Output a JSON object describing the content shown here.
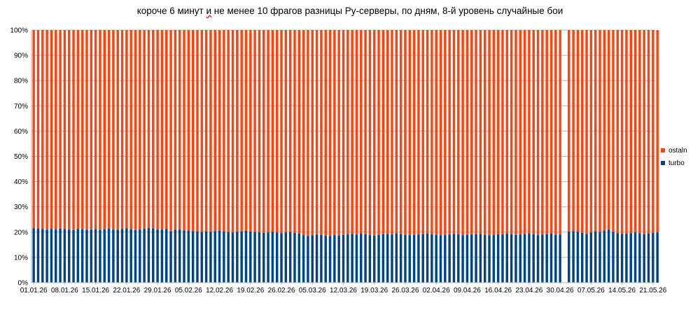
{
  "chart_data": {
    "type": "bar",
    "stacked": true,
    "normalized": true,
    "title": "короче 6 минут и не менее 10 фрагов разницы Ру-серверы, по дням, 8-й уровень случайные бои",
    "title_parts": {
      "before": "короче 6 минут ",
      "squiggled": "и",
      "after": " не менее 10 фрагов разницы Ру-серверы, по дням, 8-й уровень случайные бои"
    },
    "ylim": [
      0,
      100
    ],
    "y_ticks": [
      "0%",
      "10%",
      "20%",
      "30%",
      "40%",
      "50%",
      "60%",
      "70%",
      "80%",
      "90%",
      "100%"
    ],
    "x_tick_labels": [
      "01.01.26",
      "08.01.26",
      "15.01.26",
      "22.01.26",
      "29.01.26",
      "05.02.26",
      "12.02.26",
      "19.02.26",
      "26.02.26",
      "05.03.26",
      "12.03.26",
      "19.03.26",
      "26.03.26",
      "02.04.26",
      "09.04.26",
      "16.04.26",
      "23.04.26",
      "30.04.26",
      "07.05.26",
      "14.05.26",
      "21.05.26"
    ],
    "days": 141,
    "missing_day_index": 120,
    "grid": true,
    "legend_position": "right",
    "series": [
      {
        "name": "ostaln",
        "color": "#ff420e"
      },
      {
        "name": "turbo",
        "color": "#004586",
        "values": [
          21.5,
          21.4,
          21.2,
          21.0,
          21.3,
          21.1,
          21.4,
          21.2,
          21.0,
          20.8,
          21.3,
          21.1,
          20.9,
          21.0,
          21.2,
          20.8,
          21.1,
          21.4,
          21.0,
          20.9,
          21.2,
          21.5,
          21.1,
          20.8,
          21.0,
          21.3,
          21.7,
          21.4,
          21.0,
          20.9,
          21.2,
          20.3,
          20.9,
          21.0,
          20.7,
          20.5,
          20.4,
          20.2,
          20.0,
          20.3,
          20.1,
          20.4,
          20.6,
          20.2,
          20.0,
          19.8,
          20.1,
          20.3,
          20.5,
          20.2,
          20.0,
          19.9,
          19.7,
          19.9,
          20.1,
          19.8,
          19.6,
          19.9,
          20.0,
          19.7,
          19.4,
          18.8,
          18.5,
          18.7,
          19.0,
          18.9,
          18.6,
          18.4,
          18.8,
          18.6,
          18.9,
          19.1,
          19.3,
          19.0,
          19.4,
          19.2,
          18.8,
          18.6,
          18.9,
          19.2,
          19.3,
          19.0,
          19.5,
          19.2,
          18.9,
          18.8,
          18.9,
          19.0,
          19.2,
          19.4,
          19.1,
          18.9,
          18.7,
          18.8,
          19.0,
          19.3,
          19.1,
          18.8,
          18.9,
          19.0,
          19.2,
          19.3,
          18.9,
          18.7,
          18.9,
          19.1,
          19.0,
          19.4,
          19.2,
          18.9,
          19.0,
          19.3,
          19.5,
          19.2,
          18.8,
          19.0,
          19.2,
          19.4,
          18.9,
          19.0,
          0,
          20.2,
          20.4,
          20.1,
          19.7,
          19.3,
          19.8,
          20.2,
          20.0,
          20.6,
          21.0,
          20.1,
          19.6,
          19.3,
          19.4,
          19.6,
          19.9,
          19.6,
          19.2,
          19.4,
          19.7,
          19.9
        ]
      }
    ]
  }
}
